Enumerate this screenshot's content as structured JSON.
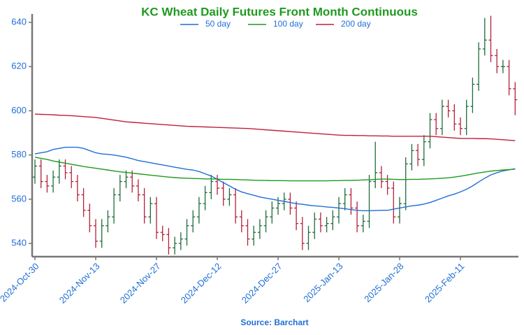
{
  "chart_data": {
    "type": "ohlc",
    "title": "KC Wheat Daily Futures Front Month Continuous",
    "source": "Source: Barchart",
    "categories": [
      "2024-Oct-30",
      null,
      null,
      null,
      null,
      null,
      null,
      null,
      null,
      null,
      "2024-Nov-13",
      null,
      null,
      null,
      null,
      null,
      null,
      null,
      null,
      null,
      "2024-Nov-27",
      null,
      null,
      null,
      null,
      null,
      null,
      null,
      null,
      null,
      "2024-Dec-12",
      null,
      null,
      null,
      null,
      null,
      null,
      null,
      null,
      null,
      "2024-Dec-27",
      null,
      null,
      null,
      null,
      null,
      null,
      null,
      null,
      null,
      "2025-Jan-13",
      null,
      null,
      null,
      null,
      null,
      null,
      null,
      null,
      null,
      "2025-Jan-28",
      null,
      null,
      null,
      null,
      null,
      null,
      null,
      null,
      null,
      "2025-Feb-11",
      null,
      null,
      null,
      null,
      null,
      null,
      null,
      null,
      null
    ],
    "up_color": "#1e6b3a",
    "down_color": "#b3203a",
    "open": [
      570,
      575,
      568,
      566,
      570,
      575,
      572,
      568,
      562,
      555,
      548,
      541,
      548,
      552,
      562,
      568,
      570,
      566,
      562,
      552,
      558,
      545,
      544,
      538,
      540,
      542,
      548,
      552,
      558,
      563,
      568,
      565,
      560,
      562,
      552,
      548,
      542,
      545,
      548,
      552,
      556,
      558,
      560,
      556,
      549,
      540,
      545,
      551,
      548,
      549,
      552,
      558,
      562,
      556,
      548,
      550,
      568,
      572,
      568,
      565,
      552,
      558,
      576,
      582,
      578,
      586,
      596,
      592,
      602,
      600,
      594,
      592,
      602,
      612,
      628,
      632,
      625,
      620,
      620,
      610
    ],
    "high": [
      578,
      578,
      571,
      573,
      578,
      578,
      575,
      571,
      565,
      558,
      551,
      551,
      555,
      565,
      571,
      573,
      573,
      569,
      565,
      561,
      561,
      548,
      547,
      543,
      545,
      551,
      555,
      561,
      566,
      571,
      571,
      568,
      565,
      565,
      555,
      551,
      548,
      551,
      555,
      559,
      561,
      563,
      563,
      559,
      552,
      548,
      554,
      554,
      552,
      555,
      561,
      565,
      565,
      559,
      553,
      571,
      586,
      575,
      571,
      568,
      561,
      579,
      585,
      585,
      589,
      599,
      599,
      605,
      605,
      603,
      597,
      605,
      615,
      631,
      642,
      643,
      628,
      623,
      623,
      613
    ],
    "low": [
      567,
      565,
      563,
      563,
      567,
      569,
      565,
      559,
      552,
      545,
      538,
      538,
      545,
      549,
      559,
      565,
      563,
      559,
      549,
      549,
      542,
      541,
      535,
      535,
      537,
      539,
      545,
      549,
      555,
      560,
      562,
      557,
      557,
      549,
      545,
      539,
      539,
      542,
      545,
      549,
      553,
      555,
      553,
      546,
      537,
      537,
      542,
      545,
      545,
      546,
      549,
      555,
      553,
      545,
      545,
      547,
      565,
      565,
      562,
      549,
      549,
      555,
      573,
      575,
      575,
      583,
      589,
      589,
      597,
      591,
      589,
      589,
      599,
      609,
      625,
      622,
      617,
      617,
      607,
      598
    ],
    "close": [
      575,
      568,
      566,
      570,
      575,
      572,
      568,
      562,
      555,
      548,
      541,
      548,
      552,
      562,
      568,
      570,
      566,
      562,
      552,
      558,
      545,
      544,
      538,
      540,
      542,
      548,
      552,
      558,
      563,
      568,
      565,
      560,
      562,
      552,
      548,
      542,
      545,
      548,
      552,
      556,
      558,
      560,
      556,
      549,
      540,
      545,
      551,
      548,
      549,
      552,
      558,
      562,
      556,
      548,
      550,
      568,
      572,
      568,
      565,
      552,
      558,
      576,
      582,
      578,
      586,
      596,
      592,
      602,
      600,
      594,
      592,
      602,
      612,
      628,
      632,
      625,
      620,
      620,
      610,
      605
    ],
    "series": [
      {
        "name": "50 day",
        "color": "#1f6fd6",
        "values": [
          580.5,
          581,
          581.5,
          582.5,
          583,
          583.5,
          583.5,
          583.5,
          583,
          582,
          581,
          580.5,
          580.3,
          580,
          579.5,
          579,
          578.3,
          577.5,
          577,
          576.5,
          576,
          575.5,
          575,
          574.5,
          574,
          573.5,
          573.2,
          572.5,
          571.5,
          570.5,
          569,
          567.5,
          566,
          564.5,
          563.3,
          562.5,
          561.8,
          561,
          560.5,
          560,
          559.5,
          559,
          558.5,
          558,
          557.7,
          557.3,
          557,
          556.8,
          556.5,
          556.3,
          556,
          555.7,
          555.3,
          555,
          554.8,
          554.8,
          554.9,
          555,
          555,
          555.5,
          556,
          556.5,
          557,
          557.3,
          557.8,
          558.5,
          559.5,
          560.5,
          561.5,
          562.3,
          563.3,
          564.5,
          566,
          567.8,
          569.5,
          571,
          572,
          572.8,
          573.3,
          573.8
        ]
      },
      {
        "name": "100 day",
        "color": "#1e9a1e",
        "values": [
          579,
          578.5,
          578,
          577.3,
          576.8,
          576.3,
          575.8,
          575.3,
          574.8,
          574.4,
          574,
          573.6,
          573.2,
          572.8,
          572.4,
          572.1,
          571.8,
          571.5,
          571.2,
          570.9,
          570.6,
          570.3,
          570,
          569.8,
          569.6,
          569.5,
          569.4,
          569.3,
          569.2,
          569.2,
          569.1,
          569,
          569,
          568.9,
          568.8,
          568.7,
          568.6,
          568.5,
          568.5,
          568.4,
          568.4,
          568.4,
          568.3,
          568.3,
          568.3,
          568.3,
          568.3,
          568.3,
          568.3,
          568.4,
          568.4,
          568.5,
          568.5,
          568.6,
          568.7,
          568.8,
          569,
          569.1,
          569.1,
          569,
          568.9,
          568.9,
          569,
          569,
          569.1,
          569.2,
          569.3,
          569.5,
          569.7,
          570,
          570.4,
          570.9,
          571.4,
          571.9,
          572.3,
          572.7,
          573,
          573.2,
          573.4,
          573.6
        ]
      },
      {
        "name": "200 day",
        "color": "#c0203c",
        "values": [
          598.5,
          598.4,
          598.3,
          598.2,
          598,
          597.9,
          597.8,
          597.6,
          597.4,
          597.2,
          597,
          596.6,
          596.2,
          595.8,
          595.4,
          595,
          594.8,
          594.6,
          594.4,
          594.2,
          594,
          593.8,
          593.6,
          593.4,
          593.2,
          593,
          592.9,
          592.8,
          592.7,
          592.6,
          592.5,
          592.4,
          592.3,
          592.2,
          592.1,
          592,
          591.8,
          591.6,
          591.4,
          591.2,
          591,
          590.8,
          590.6,
          590.4,
          590.2,
          590,
          589.8,
          589.6,
          589.4,
          589.2,
          589,
          588.9,
          588.9,
          588.8,
          588.8,
          588.7,
          588.7,
          588.6,
          588.6,
          588.5,
          588.5,
          588.5,
          588.5,
          588.5,
          588.5,
          588.5,
          588.3,
          588.1,
          587.9,
          587.7,
          587.5,
          587.5,
          587.5,
          587.4,
          587.4,
          587.3,
          587.1,
          586.9,
          586.7,
          586.5
        ]
      }
    ],
    "ylim": [
      534,
      644
    ],
    "yticks": [
      540,
      560,
      580,
      600,
      620,
      640
    ],
    "grid": false
  }
}
